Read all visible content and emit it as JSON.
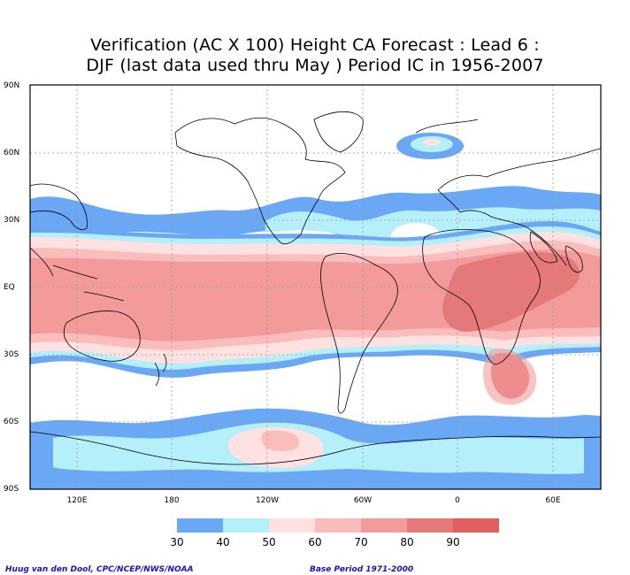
{
  "title": {
    "line1": "Verification (AC X 100) Height CA Forecast : Lead 6 :",
    "line2": "DJF (last data used thru May ) Period IC in 1956-2007"
  },
  "lat_labels": [
    "90N",
    "60N",
    "30N",
    "EQ",
    "30S",
    "60S",
    "90S"
  ],
  "lon_labels": [
    "120E",
    "180",
    "120W",
    "60W",
    "0",
    "60E"
  ],
  "colorbar": {
    "colors": [
      "#6aa7f4",
      "#b5eff9",
      "#ffe1e1",
      "#fbbcbc",
      "#f39b9b",
      "#e57878",
      "#dd5f5f"
    ],
    "labels": [
      "30",
      "40",
      "50",
      "60",
      "70",
      "80",
      "90"
    ]
  },
  "footer": {
    "left": "Huug van den Dool, CPC/NCEP/NWS/NOAA",
    "right": "Base Period 1971-2000"
  }
}
